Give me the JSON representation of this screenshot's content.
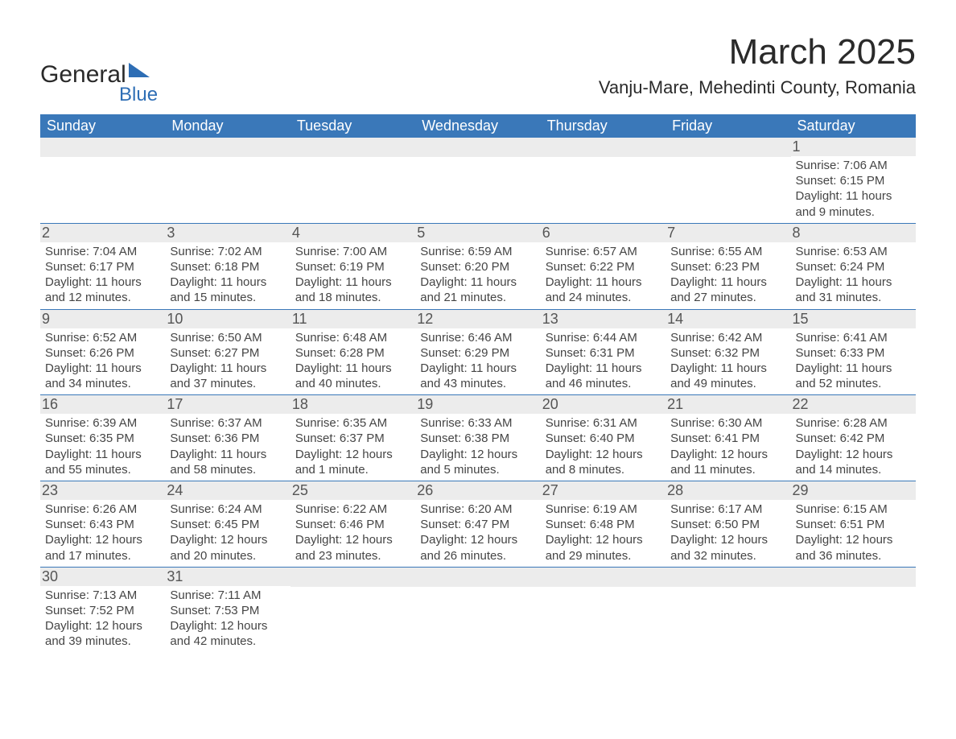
{
  "logo": {
    "text_main": "General",
    "text_sub": "Blue",
    "triangle_color": "#2e6eb5"
  },
  "title": "March 2025",
  "location": "Vanju-Mare, Mehedinti County, Romania",
  "colors": {
    "header_bg": "#3a78b9",
    "header_text": "#ffffff",
    "daynum_bg": "#ececec",
    "daynum_text": "#555555",
    "body_text": "#454545",
    "week_border": "#3a78b9",
    "background": "#ffffff"
  },
  "typography": {
    "month_title_fontsize": 44,
    "location_fontsize": 22,
    "weekday_fontsize": 18,
    "daynum_fontsize": 18,
    "body_fontsize": 15,
    "logo_main_fontsize": 30,
    "logo_sub_fontsize": 24
  },
  "weekdays": [
    "Sunday",
    "Monday",
    "Tuesday",
    "Wednesday",
    "Thursday",
    "Friday",
    "Saturday"
  ],
  "weeks": [
    [
      {
        "day": "",
        "sunrise": "",
        "sunset": "",
        "daylight": ""
      },
      {
        "day": "",
        "sunrise": "",
        "sunset": "",
        "daylight": ""
      },
      {
        "day": "",
        "sunrise": "",
        "sunset": "",
        "daylight": ""
      },
      {
        "day": "",
        "sunrise": "",
        "sunset": "",
        "daylight": ""
      },
      {
        "day": "",
        "sunrise": "",
        "sunset": "",
        "daylight": ""
      },
      {
        "day": "",
        "sunrise": "",
        "sunset": "",
        "daylight": ""
      },
      {
        "day": "1",
        "sunrise": "Sunrise: 7:06 AM",
        "sunset": "Sunset: 6:15 PM",
        "daylight": "Daylight: 11 hours and 9 minutes."
      }
    ],
    [
      {
        "day": "2",
        "sunrise": "Sunrise: 7:04 AM",
        "sunset": "Sunset: 6:17 PM",
        "daylight": "Daylight: 11 hours and 12 minutes."
      },
      {
        "day": "3",
        "sunrise": "Sunrise: 7:02 AM",
        "sunset": "Sunset: 6:18 PM",
        "daylight": "Daylight: 11 hours and 15 minutes."
      },
      {
        "day": "4",
        "sunrise": "Sunrise: 7:00 AM",
        "sunset": "Sunset: 6:19 PM",
        "daylight": "Daylight: 11 hours and 18 minutes."
      },
      {
        "day": "5",
        "sunrise": "Sunrise: 6:59 AM",
        "sunset": "Sunset: 6:20 PM",
        "daylight": "Daylight: 11 hours and 21 minutes."
      },
      {
        "day": "6",
        "sunrise": "Sunrise: 6:57 AM",
        "sunset": "Sunset: 6:22 PM",
        "daylight": "Daylight: 11 hours and 24 minutes."
      },
      {
        "day": "7",
        "sunrise": "Sunrise: 6:55 AM",
        "sunset": "Sunset: 6:23 PM",
        "daylight": "Daylight: 11 hours and 27 minutes."
      },
      {
        "day": "8",
        "sunrise": "Sunrise: 6:53 AM",
        "sunset": "Sunset: 6:24 PM",
        "daylight": "Daylight: 11 hours and 31 minutes."
      }
    ],
    [
      {
        "day": "9",
        "sunrise": "Sunrise: 6:52 AM",
        "sunset": "Sunset: 6:26 PM",
        "daylight": "Daylight: 11 hours and 34 minutes."
      },
      {
        "day": "10",
        "sunrise": "Sunrise: 6:50 AM",
        "sunset": "Sunset: 6:27 PM",
        "daylight": "Daylight: 11 hours and 37 minutes."
      },
      {
        "day": "11",
        "sunrise": "Sunrise: 6:48 AM",
        "sunset": "Sunset: 6:28 PM",
        "daylight": "Daylight: 11 hours and 40 minutes."
      },
      {
        "day": "12",
        "sunrise": "Sunrise: 6:46 AM",
        "sunset": "Sunset: 6:29 PM",
        "daylight": "Daylight: 11 hours and 43 minutes."
      },
      {
        "day": "13",
        "sunrise": "Sunrise: 6:44 AM",
        "sunset": "Sunset: 6:31 PM",
        "daylight": "Daylight: 11 hours and 46 minutes."
      },
      {
        "day": "14",
        "sunrise": "Sunrise: 6:42 AM",
        "sunset": "Sunset: 6:32 PM",
        "daylight": "Daylight: 11 hours and 49 minutes."
      },
      {
        "day": "15",
        "sunrise": "Sunrise: 6:41 AM",
        "sunset": "Sunset: 6:33 PM",
        "daylight": "Daylight: 11 hours and 52 minutes."
      }
    ],
    [
      {
        "day": "16",
        "sunrise": "Sunrise: 6:39 AM",
        "sunset": "Sunset: 6:35 PM",
        "daylight": "Daylight: 11 hours and 55 minutes."
      },
      {
        "day": "17",
        "sunrise": "Sunrise: 6:37 AM",
        "sunset": "Sunset: 6:36 PM",
        "daylight": "Daylight: 11 hours and 58 minutes."
      },
      {
        "day": "18",
        "sunrise": "Sunrise: 6:35 AM",
        "sunset": "Sunset: 6:37 PM",
        "daylight": "Daylight: 12 hours and 1 minute."
      },
      {
        "day": "19",
        "sunrise": "Sunrise: 6:33 AM",
        "sunset": "Sunset: 6:38 PM",
        "daylight": "Daylight: 12 hours and 5 minutes."
      },
      {
        "day": "20",
        "sunrise": "Sunrise: 6:31 AM",
        "sunset": "Sunset: 6:40 PM",
        "daylight": "Daylight: 12 hours and 8 minutes."
      },
      {
        "day": "21",
        "sunrise": "Sunrise: 6:30 AM",
        "sunset": "Sunset: 6:41 PM",
        "daylight": "Daylight: 12 hours and 11 minutes."
      },
      {
        "day": "22",
        "sunrise": "Sunrise: 6:28 AM",
        "sunset": "Sunset: 6:42 PM",
        "daylight": "Daylight: 12 hours and 14 minutes."
      }
    ],
    [
      {
        "day": "23",
        "sunrise": "Sunrise: 6:26 AM",
        "sunset": "Sunset: 6:43 PM",
        "daylight": "Daylight: 12 hours and 17 minutes."
      },
      {
        "day": "24",
        "sunrise": "Sunrise: 6:24 AM",
        "sunset": "Sunset: 6:45 PM",
        "daylight": "Daylight: 12 hours and 20 minutes."
      },
      {
        "day": "25",
        "sunrise": "Sunrise: 6:22 AM",
        "sunset": "Sunset: 6:46 PM",
        "daylight": "Daylight: 12 hours and 23 minutes."
      },
      {
        "day": "26",
        "sunrise": "Sunrise: 6:20 AM",
        "sunset": "Sunset: 6:47 PM",
        "daylight": "Daylight: 12 hours and 26 minutes."
      },
      {
        "day": "27",
        "sunrise": "Sunrise: 6:19 AM",
        "sunset": "Sunset: 6:48 PM",
        "daylight": "Daylight: 12 hours and 29 minutes."
      },
      {
        "day": "28",
        "sunrise": "Sunrise: 6:17 AM",
        "sunset": "Sunset: 6:50 PM",
        "daylight": "Daylight: 12 hours and 32 minutes."
      },
      {
        "day": "29",
        "sunrise": "Sunrise: 6:15 AM",
        "sunset": "Sunset: 6:51 PM",
        "daylight": "Daylight: 12 hours and 36 minutes."
      }
    ],
    [
      {
        "day": "30",
        "sunrise": "Sunrise: 7:13 AM",
        "sunset": "Sunset: 7:52 PM",
        "daylight": "Daylight: 12 hours and 39 minutes."
      },
      {
        "day": "31",
        "sunrise": "Sunrise: 7:11 AM",
        "sunset": "Sunset: 7:53 PM",
        "daylight": "Daylight: 12 hours and 42 minutes."
      },
      {
        "day": "",
        "sunrise": "",
        "sunset": "",
        "daylight": ""
      },
      {
        "day": "",
        "sunrise": "",
        "sunset": "",
        "daylight": ""
      },
      {
        "day": "",
        "sunrise": "",
        "sunset": "",
        "daylight": ""
      },
      {
        "day": "",
        "sunrise": "",
        "sunset": "",
        "daylight": ""
      },
      {
        "day": "",
        "sunrise": "",
        "sunset": "",
        "daylight": ""
      }
    ]
  ]
}
